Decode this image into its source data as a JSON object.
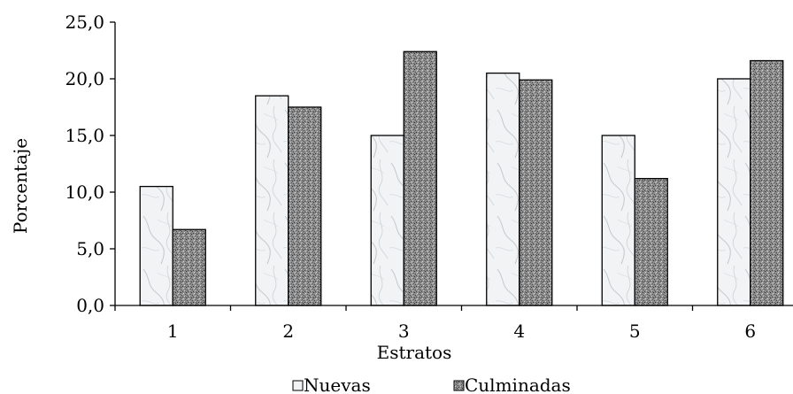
{
  "chart_data": {
    "type": "bar",
    "title": "",
    "xlabel": "Estratos",
    "ylabel": "Porcentaje",
    "categories": [
      "1",
      "2",
      "3",
      "4",
      "5",
      "6"
    ],
    "ylim": [
      0,
      25
    ],
    "yticks": [
      "0,0",
      "5,0",
      "10,0",
      "15,0",
      "20,0",
      "25,0"
    ],
    "grid": false,
    "legend_position": "bottom",
    "series": [
      {
        "name": "Nuevas",
        "values": [
          10.5,
          18.5,
          15.0,
          20.5,
          15.0,
          20.0
        ],
        "pattern": "white-marble",
        "color": "#eef0f2"
      },
      {
        "name": "Culminadas",
        "values": [
          6.7,
          17.5,
          22.4,
          19.9,
          11.2,
          21.6
        ],
        "pattern": "gray-speckle",
        "color": "#8a8a8a"
      }
    ]
  }
}
